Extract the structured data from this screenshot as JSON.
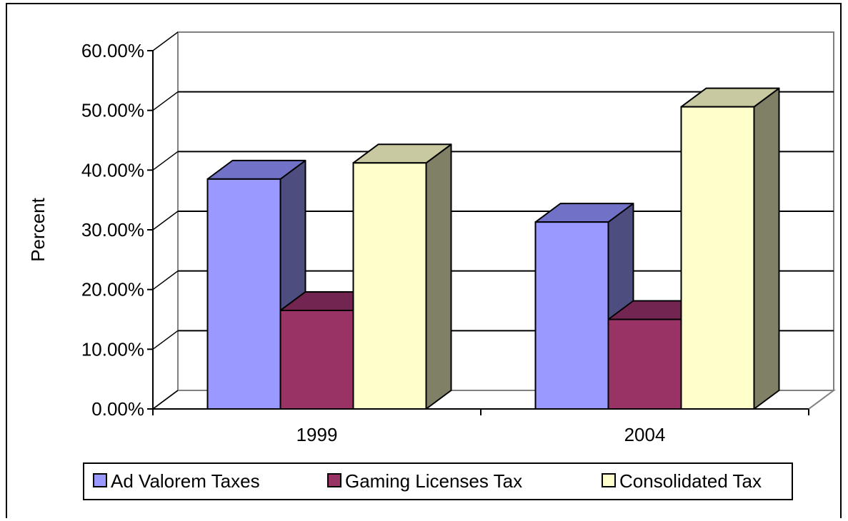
{
  "chart_data": {
    "type": "bar",
    "title": "",
    "xlabel": "",
    "ylabel": "Percent",
    "categories": [
      "1999",
      "2004"
    ],
    "series": [
      {
        "name": "Ad Valorem Taxes",
        "values": [
          38.5,
          31.3
        ],
        "color": {
          "front": "#9999ff",
          "top": "#7171c7",
          "side": "#4d4d80"
        }
      },
      {
        "name": "Gaming Licenses Tax",
        "values": [
          16.5,
          15.0
        ],
        "color": {
          "front": "#993366",
          "top": "#712550",
          "side": "#6f2040"
        }
      },
      {
        "name": "Consolidated Tax",
        "values": [
          41.2,
          50.6
        ],
        "color": {
          "front": "#ffffcc",
          "top": "#c9c9a1",
          "side": "#808066"
        }
      }
    ],
    "ylim": [
      0,
      60
    ],
    "yticks": [
      "0.00%",
      "10.00%",
      "20.00%",
      "30.00%",
      "40.00%",
      "50.00%",
      "60.00%"
    ],
    "grid": true,
    "legend_position": "bottom"
  }
}
